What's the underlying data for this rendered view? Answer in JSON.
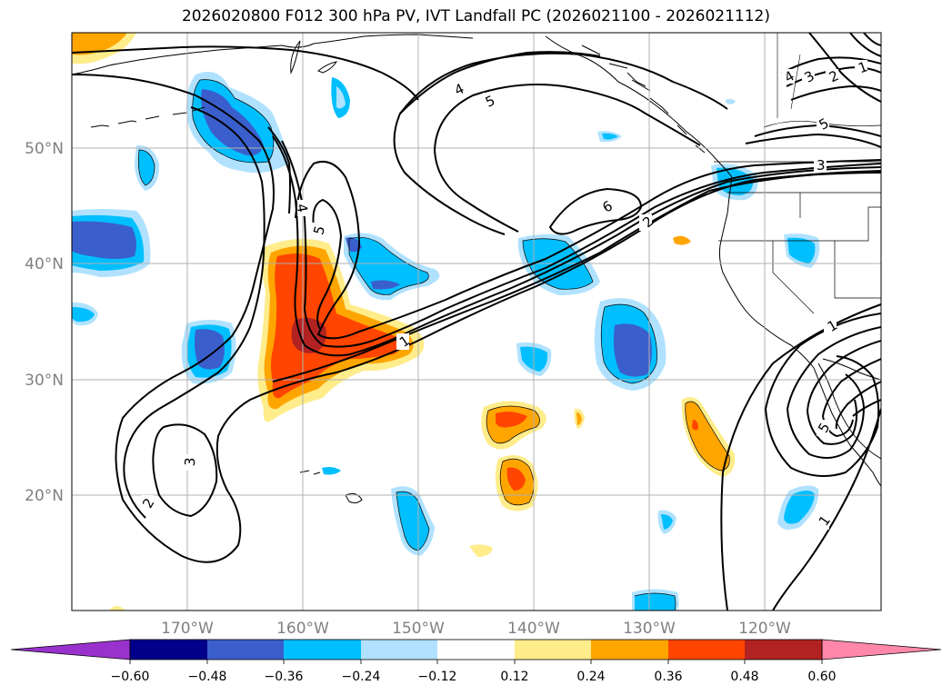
{
  "title": "2026020800 F012 300 hPa PV, IVT Landfall PC (2026021100 - 2026021112)",
  "lon_ticks": [
    "170°W",
    "160°W",
    "150°W",
    "140°W",
    "130°W",
    "120°W"
  ],
  "lat_ticks": [
    "50°N",
    "40°N",
    "30°N",
    "20°N"
  ],
  "colorbar": {
    "ticks": [
      "−0.60",
      "−0.48",
      "−0.36",
      "−0.24",
      "−0.12",
      "0.12",
      "0.24",
      "0.36",
      "0.48",
      "0.60"
    ],
    "colors": [
      "#9932cc",
      "#00008b",
      "#3a5fcd",
      "#00bfff",
      "#b0e2ff",
      "#ffffff",
      "#ffec8b",
      "#ffa500",
      "#ff4500",
      "#b22222",
      "#ff88aa"
    ]
  },
  "contour_labels": {
    "l1a": "1",
    "l1b": "1",
    "l1c": "1",
    "l1d": "1",
    "l2a": "2",
    "l2b": "2",
    "l2c": "2",
    "l3a": "3",
    "l3b": "3",
    "l3c": "3",
    "l4a": "4",
    "l4b": "4",
    "l4c": "4",
    "l5a": "5",
    "l5b": "5",
    "l5c": "5",
    "l5d": "5",
    "l6a": "6"
  }
}
